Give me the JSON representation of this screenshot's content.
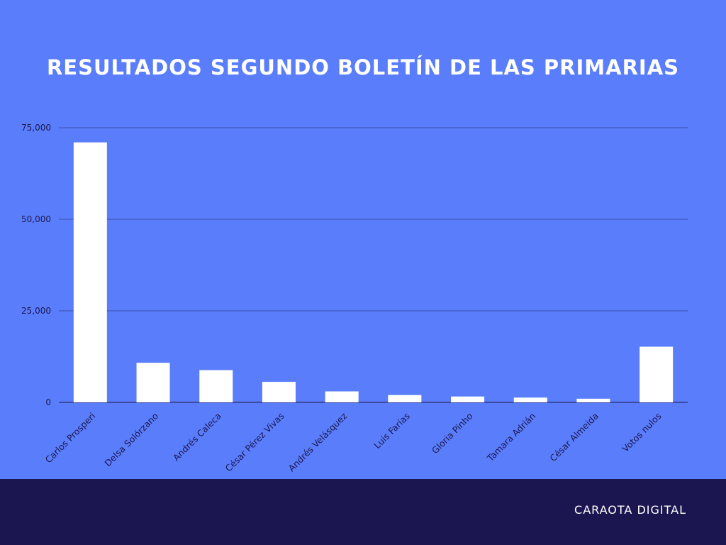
{
  "chart_data": {
    "type": "bar",
    "title": "RESULTADOS SEGUNDO BOLETÍN DE LAS PRIMARIAS",
    "categories": [
      "Carlos Prosperi",
      "Delsa Solórzano",
      "Andrés Caleca",
      "César Pérez Vivas",
      "Andrés Velásquez",
      "Luis Farías",
      "Gloria Pinho",
      "Tamara Adrián",
      "César Almeida",
      "Votos nulos"
    ],
    "values": [
      71000,
      10800,
      8800,
      5600,
      3000,
      2000,
      1600,
      1300,
      1000,
      15200
    ],
    "yticks": [
      0,
      25000,
      50000,
      75000
    ],
    "ytick_labels": [
      "0",
      "25,000",
      "50,000",
      "75,000"
    ],
    "ylim": [
      0,
      75000
    ],
    "grid": true,
    "xlabel": "",
    "ylabel": "",
    "colors": {
      "background": "#5a7efb",
      "bar": "#ffffff",
      "grid": "#3a4fb0",
      "text": "#1c1650",
      "footer": "#1c1650"
    }
  },
  "footer": {
    "brand": "CARAOTA DIGITAL"
  }
}
